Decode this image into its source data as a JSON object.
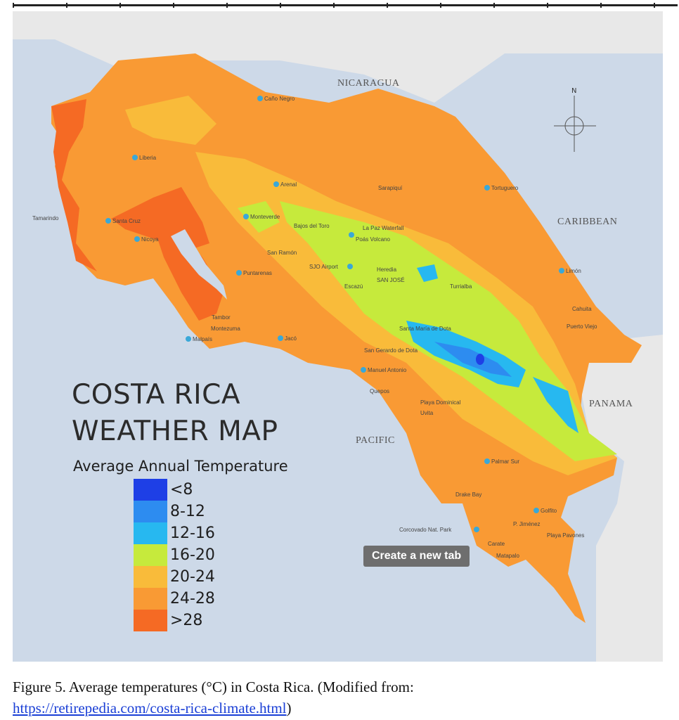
{
  "map": {
    "title_line1": "COSTA RICA",
    "title_line2": "WEATHER MAP",
    "regions": {
      "nicaragua": "NICARAGUA",
      "caribbean": "CARIBBEAN",
      "panama": "PANAMA",
      "pacific": "PACIFIC"
    },
    "compass_label": "N",
    "places": [
      "Caño Negro",
      "Liberia",
      "Arenal",
      "Tortuguero",
      "Monteverde",
      "Santa Cruz",
      "Nicoya",
      "Puntarenas",
      "Poás Volcano",
      "La Paz Waterfall",
      "SJO Airport",
      "SAN JOSÉ",
      "Heredia",
      "Escazú",
      "Limón",
      "Jacó",
      "Malpaís",
      "Santa María de Dota",
      "San Gerardo de Dota",
      "Manuel Antonio",
      "Playa Dominical",
      "Palmar Sur",
      "Golfito",
      "Corcovado Nat. Park",
      "P. Jiménez",
      "Playa Pavones",
      "Uvita",
      "Tamarindo",
      "Montezuma",
      "Turrialba",
      "Sarapiquí",
      "Cahuita",
      "Puerto Viejo",
      "Tambor",
      "Quepos",
      "Bajos del Toro",
      "San Ramón",
      "Drake Bay",
      "Carate",
      "Matapalo"
    ],
    "legend": {
      "title": "Average Annual Temperature",
      "items": [
        {
          "label": "<8",
          "color": "#1e3fe6"
        },
        {
          "label": "8-12",
          "color": "#2d8cf0"
        },
        {
          "label": "12-16",
          "color": "#27b8f0"
        },
        {
          "label": "16-20",
          "color": "#c6ea3c"
        },
        {
          "label": "20-24",
          "color": "#f9bb3a"
        },
        {
          "label": "24-28",
          "color": "#f99a34"
        },
        {
          "label": ">28",
          "color": "#f56a24"
        }
      ]
    }
  },
  "tooltip": "Create a new tab",
  "caption": {
    "text": "Figure 5. Average temperatures (°C) in Costa Rica. (Modified from:",
    "link": "https://retirepedia.com/costa-rica-climate.html",
    "close": ")"
  }
}
